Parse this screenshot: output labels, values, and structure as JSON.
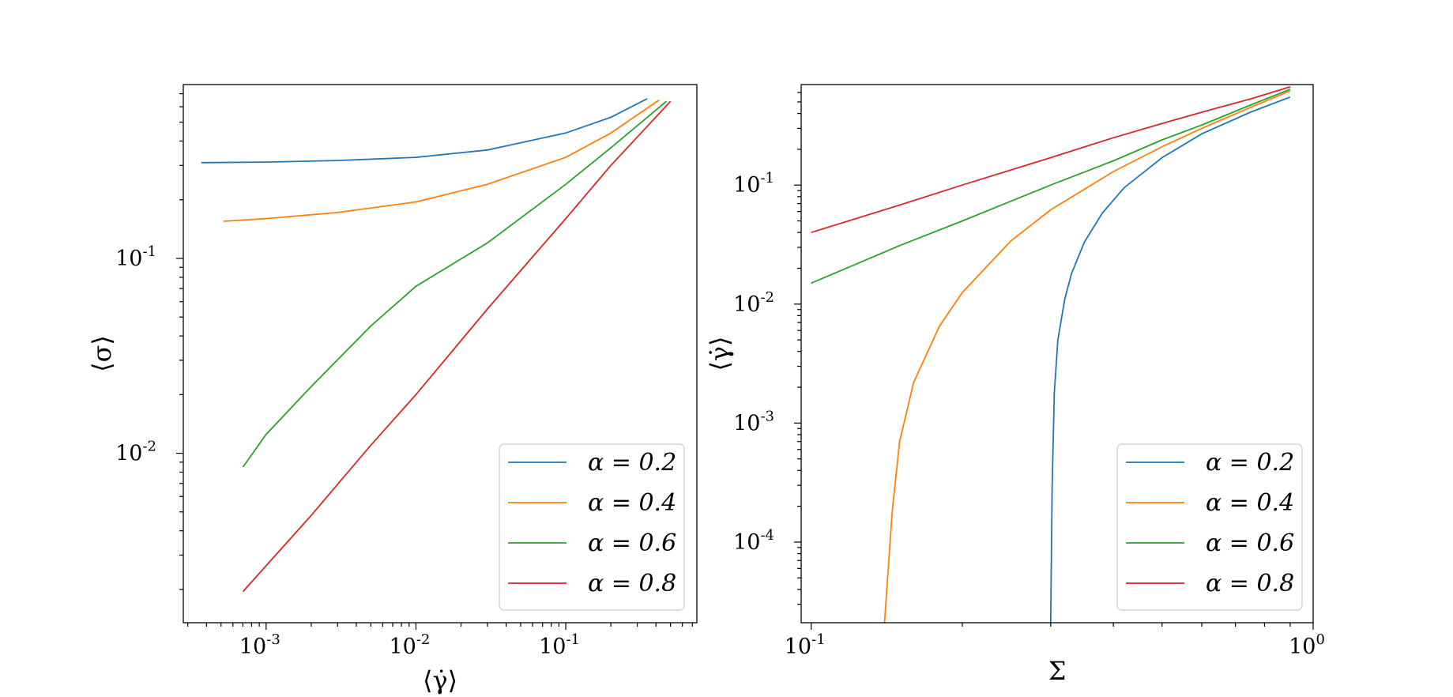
{
  "colors": {
    "series": [
      "#1f77b4",
      "#ff7f0e",
      "#2ca02c",
      "#d62728"
    ]
  },
  "chart_data": [
    {
      "type": "line",
      "scale": "log-log",
      "xlabel": "⟨γ̇⟩",
      "ylabel": "⟨σ⟩",
      "xlim": [
        0.00028,
        0.75
      ],
      "ylim": [
        0.00135,
        0.78
      ],
      "xticks": [
        {
          "value": 0.001,
          "label": "10",
          "exp": "-3"
        },
        {
          "value": 0.01,
          "label": "10",
          "exp": "-2"
        },
        {
          "value": 0.1,
          "label": "10",
          "exp": "-1"
        }
      ],
      "yticks": [
        {
          "value": 0.01,
          "label": "10",
          "exp": "-2"
        },
        {
          "value": 0.1,
          "label": "10",
          "exp": "-1"
        }
      ],
      "grid": false,
      "legend": "lower-right",
      "series": [
        {
          "name": "α = 0.2",
          "x": [
            0.00037,
            0.001,
            0.003,
            0.01,
            0.03,
            0.1,
            0.2,
            0.35
          ],
          "y": [
            0.31,
            0.312,
            0.318,
            0.33,
            0.36,
            0.44,
            0.53,
            0.66
          ]
        },
        {
          "name": "α = 0.4",
          "x": [
            0.00052,
            0.001,
            0.003,
            0.01,
            0.03,
            0.1,
            0.2,
            0.42
          ],
          "y": [
            0.155,
            0.16,
            0.172,
            0.195,
            0.24,
            0.33,
            0.44,
            0.65
          ]
        },
        {
          "name": "α = 0.6",
          "x": [
            0.0007,
            0.001,
            0.002,
            0.005,
            0.01,
            0.03,
            0.1,
            0.2,
            0.47
          ],
          "y": [
            0.0085,
            0.0125,
            0.022,
            0.045,
            0.072,
            0.12,
            0.24,
            0.37,
            0.64
          ]
        },
        {
          "name": "α = 0.8",
          "x": [
            0.0007,
            0.002,
            0.005,
            0.01,
            0.03,
            0.1,
            0.2,
            0.5
          ],
          "y": [
            0.00195,
            0.0048,
            0.011,
            0.02,
            0.055,
            0.16,
            0.3,
            0.64
          ]
        }
      ]
    },
    {
      "type": "line",
      "scale": "log-log",
      "xlabel": "Σ",
      "ylabel": "⟨γ̇⟩",
      "xlim": [
        0.0955,
        1.0
      ],
      "ylim": [
        2.1e-05,
        0.7
      ],
      "xticks": [
        {
          "value": 0.1,
          "label": "10",
          "exp": "-1"
        },
        {
          "value": 1.0,
          "label": "10",
          "exp": "0"
        }
      ],
      "yticks": [
        {
          "value": 0.0001,
          "label": "10",
          "exp": "-4"
        },
        {
          "value": 0.001,
          "label": "10",
          "exp": "-3"
        },
        {
          "value": 0.01,
          "label": "10",
          "exp": "-2"
        },
        {
          "value": 0.1,
          "label": "10",
          "exp": "-1"
        }
      ],
      "grid": false,
      "legend": "lower-right",
      "series": [
        {
          "name": "α = 0.2",
          "x": [
            0.3,
            0.302,
            0.305,
            0.31,
            0.32,
            0.33,
            0.35,
            0.38,
            0.42,
            0.5,
            0.6,
            0.75,
            0.9
          ],
          "y": [
            2.1e-05,
            0.0003,
            0.0018,
            0.005,
            0.011,
            0.018,
            0.033,
            0.058,
            0.095,
            0.17,
            0.27,
            0.41,
            0.55
          ]
        },
        {
          "name": "α = 0.4",
          "x": [
            0.14,
            0.145,
            0.15,
            0.16,
            0.18,
            0.2,
            0.25,
            0.3,
            0.4,
            0.5,
            0.6,
            0.75,
            0.9
          ],
          "y": [
            2.1e-05,
            0.00018,
            0.0007,
            0.0022,
            0.0065,
            0.0125,
            0.034,
            0.062,
            0.13,
            0.21,
            0.3,
            0.45,
            0.62
          ]
        },
        {
          "name": "α = 0.6",
          "x": [
            0.1,
            0.15,
            0.2,
            0.3,
            0.4,
            0.5,
            0.6,
            0.75,
            0.9
          ],
          "y": [
            0.015,
            0.031,
            0.05,
            0.1,
            0.16,
            0.24,
            0.32,
            0.47,
            0.64
          ]
        },
        {
          "name": "α = 0.8",
          "x": [
            0.1,
            0.15,
            0.2,
            0.3,
            0.4,
            0.5,
            0.6,
            0.75,
            0.9
          ],
          "y": [
            0.04,
            0.068,
            0.1,
            0.17,
            0.25,
            0.33,
            0.41,
            0.53,
            0.67
          ]
        }
      ]
    }
  ]
}
